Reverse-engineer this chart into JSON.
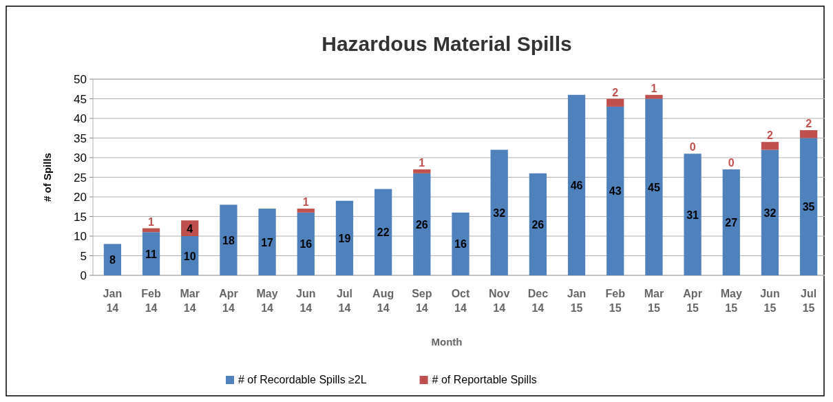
{
  "chart_data": {
    "type": "bar",
    "title": "Hazardous Material Spills",
    "xlabel": "Month",
    "ylabel": "# of Spills",
    "categories": [
      "Jan 14",
      "Feb 14",
      "Mar 14",
      "Apr 14",
      "May 14",
      "Jun 14",
      "Jul 14",
      "Aug 14",
      "Sep 14",
      "Oct 14",
      "Nov 14",
      "Dec 14",
      "Jan 15",
      "Feb 15",
      "Mar 15",
      "Apr 15",
      "May 15",
      "Jun 15",
      "Jul 15"
    ],
    "series": [
      {
        "name": "# of Recordable Spills ≥2L",
        "color": "#4f81bd",
        "values": [
          8,
          11,
          10,
          18,
          17,
          16,
          19,
          22,
          26,
          16,
          32,
          26,
          46,
          43,
          45,
          31,
          27,
          32,
          35
        ]
      },
      {
        "name": "# of Reportable Spills",
        "color": "#c0504d",
        "values": [
          null,
          1,
          4,
          null,
          null,
          1,
          null,
          null,
          1,
          null,
          null,
          null,
          null,
          2,
          1,
          0,
          0,
          2,
          2
        ]
      }
    ],
    "stacked": true,
    "ylim": [
      0,
      50
    ],
    "yticks": [
      0,
      5,
      10,
      15,
      20,
      25,
      30,
      35,
      40,
      45,
      50
    ],
    "grid": "y",
    "legend": "bottom",
    "data_labels": true
  }
}
